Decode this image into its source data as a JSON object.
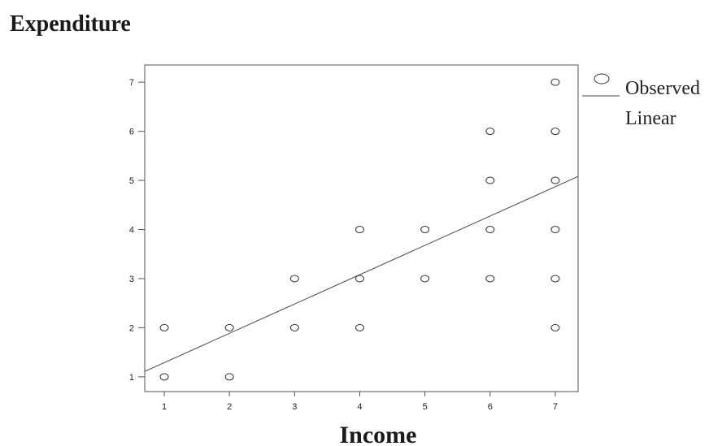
{
  "chart_data": {
    "type": "scatter",
    "title": "Expenditure",
    "xlabel": "Income",
    "ylabel": "",
    "xlim": [
      0.7,
      7.35
    ],
    "ylim": [
      0.7,
      7.35
    ],
    "x_ticks": [
      1,
      2,
      3,
      4,
      5,
      6,
      7
    ],
    "y_ticks": [
      1,
      2,
      3,
      4,
      5,
      6,
      7
    ],
    "grid": false,
    "legend_position": "right",
    "series": [
      {
        "name": "Observed",
        "type": "scatter",
        "points": [
          [
            1,
            1
          ],
          [
            1,
            2
          ],
          [
            2,
            1
          ],
          [
            2,
            2
          ],
          [
            3,
            2
          ],
          [
            3,
            3
          ],
          [
            4,
            2
          ],
          [
            4,
            3
          ],
          [
            4,
            4
          ],
          [
            5,
            3
          ],
          [
            5,
            4
          ],
          [
            6,
            3
          ],
          [
            6,
            4
          ],
          [
            6,
            5
          ],
          [
            6,
            6
          ],
          [
            7,
            2
          ],
          [
            7,
            3
          ],
          [
            7,
            4
          ],
          [
            7,
            5
          ],
          [
            7,
            6
          ],
          [
            7,
            7
          ]
        ]
      },
      {
        "name": "Linear",
        "type": "line",
        "points": [
          [
            0.7,
            1.11
          ],
          [
            7.35,
            5.08
          ]
        ]
      }
    ],
    "colors": {
      "axis": "#555555",
      "marker": "#333333",
      "line": "#444444",
      "text": "#1a1a1a"
    }
  }
}
